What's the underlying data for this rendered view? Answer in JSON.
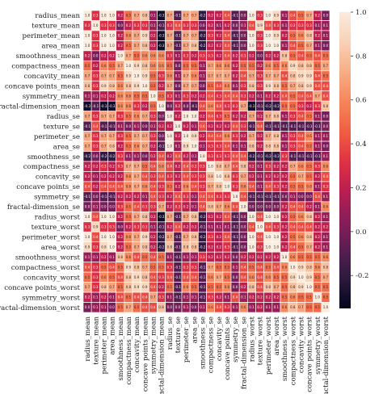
{
  "chart_data": {
    "type": "heatmap",
    "variables": [
      "radius_mean",
      "texture_mean",
      "perimeter_mean",
      "area_mean",
      "smoothness_mean",
      "compactness_mean",
      "concavity_mean",
      "concave points_mean",
      "symmetry_mean",
      "fractal-dimension_mean",
      "radius_se",
      "texture_se",
      "perimeter_se",
      "area_se",
      "smoothness_se",
      "compactness_se",
      "concavity_se",
      "concave points_se",
      "symmetry_se",
      "fractal-dimension_se",
      "radius_worst",
      "texture_worst",
      "perimeter_worst",
      "area_worst",
      "smoothness_worst",
      "compactness_worst",
      "concavity_worst",
      "concave points_worst",
      "symmetry_worst",
      "fractal-dimension_worst"
    ],
    "values": [
      [
        1.0,
        0.3,
        1.0,
        1.0,
        0.2,
        0.5,
        0.7,
        0.8,
        0.1,
        -0.3,
        0.7,
        -0.1,
        0.7,
        0.7,
        -0.2,
        0.2,
        0.2,
        0.4,
        -0.1,
        -0.0,
        1.0,
        0.3,
        1.0,
        0.9,
        0.1,
        0.4,
        0.5,
        0.7,
        0.2,
        0.0
      ],
      [
        0.3,
        1.0,
        0.3,
        0.3,
        -0.0,
        0.2,
        0.3,
        0.3,
        0.1,
        -0.1,
        0.3,
        0.4,
        0.3,
        0.3,
        0.0,
        0.2,
        0.1,
        0.2,
        0.0,
        0.1,
        0.4,
        0.9,
        0.4,
        0.3,
        0.1,
        0.3,
        0.3,
        0.3,
        0.1,
        0.1
      ],
      [
        1.0,
        0.3,
        1.0,
        1.0,
        0.2,
        0.6,
        0.7,
        0.9,
        0.2,
        -0.3,
        0.7,
        -0.1,
        0.7,
        0.7,
        -0.2,
        0.3,
        0.2,
        0.4,
        -0.1,
        -0.0,
        1.0,
        0.3,
        1.0,
        0.9,
        0.2,
        0.5,
        0.6,
        0.8,
        0.2,
        0.1
      ],
      [
        1.0,
        0.3,
        1.0,
        1.0,
        0.2,
        0.5,
        0.7,
        0.8,
        0.2,
        -0.3,
        0.7,
        -0.1,
        0.7,
        0.8,
        -0.2,
        0.2,
        0.2,
        0.4,
        -0.1,
        -0.0,
        1.0,
        0.3,
        1.0,
        1.0,
        0.1,
        0.4,
        0.5,
        0.7,
        0.1,
        0.0
      ],
      [
        0.2,
        -0.0,
        0.2,
        0.2,
        1.0,
        0.7,
        0.5,
        0.6,
        0.6,
        0.6,
        0.3,
        0.1,
        0.3,
        0.2,
        0.3,
        0.3,
        0.2,
        0.4,
        0.2,
        0.3,
        0.2,
        0.0,
        0.2,
        0.2,
        0.8,
        0.5,
        0.4,
        0.5,
        0.4,
        0.5
      ],
      [
        0.5,
        0.2,
        0.6,
        0.5,
        0.7,
        1.0,
        0.9,
        0.8,
        0.6,
        0.6,
        0.5,
        0.0,
        0.5,
        0.5,
        0.1,
        0.7,
        0.6,
        0.6,
        0.2,
        0.5,
        0.5,
        0.2,
        0.6,
        0.5,
        0.6,
        0.9,
        0.8,
        0.8,
        0.5,
        0.7
      ],
      [
        0.7,
        0.3,
        0.7,
        0.7,
        0.5,
        0.9,
        1.0,
        0.9,
        0.5,
        0.3,
        0.6,
        0.1,
        0.7,
        0.6,
        0.1,
        0.7,
        0.7,
        0.7,
        0.2,
        0.4,
        0.7,
        0.3,
        0.7,
        0.7,
        0.4,
        0.8,
        0.9,
        0.9,
        0.4,
        0.5
      ],
      [
        0.8,
        0.3,
        0.9,
        0.8,
        0.6,
        0.8,
        0.9,
        1.0,
        0.5,
        0.2,
        0.7,
        0.0,
        0.7,
        0.7,
        0.0,
        0.5,
        0.4,
        0.6,
        0.1,
        0.3,
        0.8,
        0.3,
        0.9,
        0.8,
        0.5,
        0.7,
        0.8,
        0.9,
        0.4,
        0.4
      ],
      [
        0.1,
        0.1,
        0.2,
        0.2,
        0.6,
        0.6,
        0.5,
        0.5,
        1.0,
        0.5,
        0.3,
        0.1,
        0.3,
        0.2,
        0.2,
        0.4,
        0.3,
        0.4,
        0.4,
        0.3,
        0.2,
        0.1,
        0.2,
        0.2,
        0.4,
        0.5,
        0.4,
        0.4,
        0.7,
        0.4
      ],
      [
        -0.3,
        -0.1,
        -0.3,
        -0.3,
        0.6,
        0.6,
        0.3,
        0.2,
        0.5,
        1.0,
        0.0,
        0.2,
        0.0,
        -0.1,
        0.4,
        0.6,
        0.4,
        0.3,
        0.3,
        0.7,
        -0.3,
        -0.1,
        -0.2,
        -0.2,
        0.5,
        0.5,
        0.3,
        0.2,
        0.3,
        0.8
      ],
      [
        0.7,
        0.3,
        0.7,
        0.7,
        0.3,
        0.5,
        0.6,
        0.7,
        0.3,
        0.0,
        1.0,
        0.2,
        1.0,
        1.0,
        0.2,
        0.4,
        0.3,
        0.5,
        0.2,
        0.2,
        0.7,
        0.2,
        0.7,
        0.8,
        0.1,
        0.3,
        0.4,
        0.5,
        0.1,
        0.0
      ],
      [
        -0.1,
        0.4,
        -0.1,
        -0.1,
        0.1,
        0.0,
        0.1,
        0.0,
        0.1,
        0.2,
        0.2,
        1.0,
        0.2,
        0.1,
        0.4,
        0.2,
        0.2,
        0.2,
        0.4,
        0.3,
        -0.1,
        0.4,
        -0.1,
        -0.1,
        -0.1,
        -0.1,
        -0.1,
        -0.1,
        -0.1,
        -0.0
      ],
      [
        0.7,
        0.3,
        0.7,
        0.7,
        0.3,
        0.5,
        0.7,
        0.7,
        0.3,
        0.0,
        1.0,
        0.2,
        1.0,
        0.9,
        0.2,
        0.4,
        0.4,
        0.6,
        0.3,
        0.2,
        0.7,
        0.2,
        0.7,
        0.8,
        0.1,
        0.3,
        0.4,
        0.6,
        0.1,
        0.1
      ],
      [
        0.7,
        0.3,
        0.7,
        0.8,
        0.2,
        0.5,
        0.6,
        0.7,
        0.2,
        -0.1,
        1.0,
        0.1,
        0.9,
        1.0,
        0.1,
        0.3,
        0.3,
        0.4,
        0.1,
        0.1,
        0.8,
        0.2,
        0.8,
        0.8,
        0.1,
        0.3,
        0.4,
        0.5,
        0.1,
        0.0
      ],
      [
        -0.2,
        0.0,
        -0.2,
        -0.2,
        0.3,
        0.1,
        0.1,
        0.0,
        0.2,
        0.4,
        0.2,
        0.4,
        0.2,
        0.1,
        1.0,
        0.3,
        0.3,
        0.3,
        0.4,
        0.4,
        -0.2,
        -0.1,
        -0.2,
        -0.2,
        0.3,
        -0.1,
        -0.1,
        -0.1,
        -0.1,
        0.1
      ],
      [
        0.2,
        0.2,
        0.3,
        0.2,
        0.3,
        0.7,
        0.7,
        0.5,
        0.4,
        0.6,
        0.4,
        0.2,
        0.4,
        0.3,
        0.3,
        1.0,
        0.8,
        0.7,
        0.4,
        0.8,
        0.2,
        0.1,
        0.3,
        0.2,
        0.2,
        0.7,
        0.6,
        0.5,
        0.3,
        0.6
      ],
      [
        0.2,
        0.1,
        0.2,
        0.2,
        0.2,
        0.6,
        0.7,
        0.4,
        0.3,
        0.4,
        0.3,
        0.2,
        0.4,
        0.3,
        0.3,
        0.8,
        1.0,
        0.8,
        0.3,
        0.7,
        0.2,
        0.1,
        0.2,
        0.2,
        0.2,
        0.5,
        0.7,
        0.5,
        0.2,
        0.4
      ],
      [
        0.4,
        0.2,
        0.4,
        0.4,
        0.4,
        0.6,
        0.7,
        0.6,
        0.4,
        0.3,
        0.5,
        0.2,
        0.6,
        0.4,
        0.3,
        0.7,
        0.8,
        1.0,
        0.3,
        0.6,
        0.4,
        0.1,
        0.4,
        0.3,
        0.2,
        0.5,
        0.5,
        0.6,
        0.1,
        0.3
      ],
      [
        -0.1,
        0.0,
        -0.1,
        -0.1,
        0.2,
        0.2,
        0.2,
        0.1,
        0.4,
        0.3,
        0.2,
        0.4,
        0.3,
        0.1,
        0.4,
        0.4,
        0.3,
        0.3,
        1.0,
        0.4,
        -0.1,
        -0.1,
        -0.1,
        -0.1,
        -0.0,
        0.1,
        0.0,
        -0.0,
        0.4,
        0.1
      ],
      [
        -0.0,
        0.1,
        -0.0,
        -0.0,
        0.3,
        0.5,
        0.4,
        0.3,
        0.3,
        0.7,
        0.2,
        0.3,
        0.2,
        0.1,
        0.4,
        0.8,
        0.7,
        0.6,
        0.4,
        1.0,
        -0.0,
        -0.0,
        -0.0,
        -0.0,
        0.2,
        0.4,
        0.4,
        0.2,
        0.1,
        0.6
      ],
      [
        1.0,
        0.4,
        1.0,
        1.0,
        0.2,
        0.5,
        0.7,
        0.8,
        0.2,
        -0.3,
        0.7,
        -0.1,
        0.7,
        0.8,
        -0.2,
        0.2,
        0.2,
        0.4,
        -0.1,
        -0.0,
        1.0,
        0.4,
        1.0,
        1.0,
        0.2,
        0.5,
        0.6,
        0.8,
        0.2,
        0.1
      ],
      [
        0.3,
        0.9,
        0.3,
        0.3,
        0.0,
        0.2,
        0.3,
        0.3,
        0.1,
        -0.1,
        0.2,
        0.4,
        0.2,
        0.2,
        -0.1,
        0.1,
        0.1,
        0.1,
        -0.1,
        -0.0,
        0.4,
        1.0,
        0.4,
        0.3,
        0.2,
        0.4,
        0.4,
        0.4,
        0.2,
        0.2
      ],
      [
        1.0,
        0.4,
        1.0,
        1.0,
        0.2,
        0.6,
        0.7,
        0.9,
        0.2,
        -0.2,
        0.7,
        -0.1,
        0.7,
        0.8,
        -0.2,
        0.3,
        0.2,
        0.4,
        -0.1,
        -0.0,
        1.0,
        0.4,
        1.0,
        1.0,
        0.2,
        0.5,
        0.6,
        0.8,
        0.2,
        0.1
      ],
      [
        0.9,
        0.3,
        0.9,
        1.0,
        0.2,
        0.5,
        0.7,
        0.8,
        0.2,
        -0.2,
        0.8,
        -0.1,
        0.8,
        0.8,
        -0.2,
        0.2,
        0.2,
        0.3,
        -0.1,
        -0.0,
        1.0,
        0.3,
        1.0,
        1.0,
        0.2,
        0.4,
        0.5,
        0.7,
        0.2,
        0.1
      ],
      [
        0.1,
        0.1,
        0.2,
        0.1,
        0.8,
        0.6,
        0.4,
        0.5,
        0.4,
        0.5,
        0.1,
        -0.1,
        0.1,
        0.1,
        0.3,
        0.2,
        0.2,
        0.2,
        -0.0,
        0.2,
        0.2,
        0.2,
        0.2,
        0.2,
        1.0,
        0.6,
        0.5,
        0.5,
        0.5,
        0.6
      ],
      [
        0.4,
        0.3,
        0.5,
        0.4,
        0.5,
        0.9,
        0.8,
        0.7,
        0.5,
        0.5,
        0.3,
        -0.1,
        0.3,
        0.3,
        -0.1,
        0.7,
        0.5,
        0.5,
        0.1,
        0.4,
        0.5,
        0.4,
        0.5,
        0.4,
        0.6,
        1.0,
        0.9,
        0.8,
        0.6,
        0.8
      ],
      [
        0.5,
        0.3,
        0.6,
        0.5,
        0.4,
        0.8,
        0.9,
        0.8,
        0.4,
        0.3,
        0.4,
        -0.1,
        0.4,
        0.4,
        -0.1,
        0.6,
        0.7,
        0.5,
        0.0,
        0.4,
        0.6,
        0.4,
        0.6,
        0.5,
        0.5,
        0.9,
        1.0,
        0.9,
        0.5,
        0.7
      ],
      [
        0.7,
        0.3,
        0.8,
        0.7,
        0.5,
        0.8,
        0.9,
        0.9,
        0.4,
        0.2,
        0.5,
        -0.1,
        0.6,
        0.5,
        -0.1,
        0.5,
        0.5,
        0.6,
        -0.0,
        0.2,
        0.8,
        0.4,
        0.8,
        0.7,
        0.5,
        0.8,
        0.9,
        1.0,
        0.5,
        0.5
      ],
      [
        0.2,
        0.1,
        0.2,
        0.1,
        0.4,
        0.5,
        0.4,
        0.4,
        0.7,
        0.3,
        0.1,
        -0.1,
        0.1,
        0.1,
        -0.1,
        0.3,
        0.2,
        0.1,
        0.4,
        0.1,
        0.2,
        0.2,
        0.2,
        0.2,
        0.5,
        0.6,
        0.5,
        0.5,
        1.0,
        0.5
      ],
      [
        0.0,
        0.1,
        0.1,
        0.0,
        0.5,
        0.7,
        0.5,
        0.4,
        0.4,
        0.8,
        0.0,
        -0.0,
        0.1,
        0.0,
        0.1,
        0.6,
        0.4,
        0.3,
        0.1,
        0.6,
        0.1,
        0.2,
        0.1,
        0.1,
        0.6,
        0.8,
        0.7,
        0.5,
        0.5,
        1.0
      ]
    ],
    "vmin": -0.35,
    "vmax": 1.0,
    "colorbar_ticks": [
      1.0,
      0.8,
      0.6,
      0.4,
      0.2,
      0.0,
      -0.2
    ],
    "colormap": "rocket",
    "colormap_stops": [
      "#03051a",
      "#2c1a3f",
      "#5a1e52",
      "#8a1e5a",
      "#bb1f4f",
      "#e13342",
      "#f06043",
      "#f5875a",
      "#f6ae88",
      "#f8d2b6",
      "#faebdd"
    ],
    "cell_border_color": "#ffffff",
    "annotations": true,
    "grid": false
  }
}
